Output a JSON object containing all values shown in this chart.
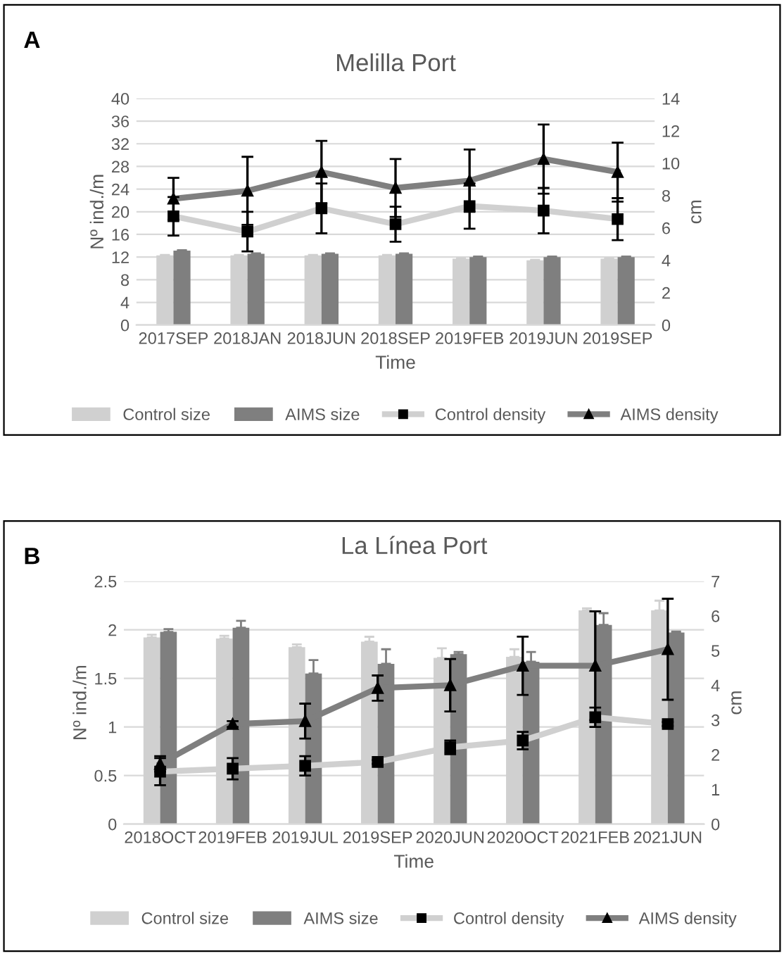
{
  "chart_data": [
    {
      "type": "bar",
      "title": "Melilla Port",
      "xlabel": "Time",
      "ylabel": "Nº ind./m",
      "y2label": "cm",
      "annotations": [
        "A"
      ],
      "categories": [
        "2017SEP",
        "2018JAN",
        "2018JUN",
        "2018SEP",
        "2019FEB",
        "2019JUN",
        "2019SEP"
      ],
      "ylim": [
        0,
        40
      ],
      "yticks": [
        0,
        4,
        8,
        12,
        16,
        20,
        24,
        28,
        32,
        36,
        40
      ],
      "y2lim": [
        0,
        14
      ],
      "y2ticks": [
        0,
        2,
        4,
        6,
        8,
        10,
        12,
        14
      ],
      "grid": "y",
      "legend": "bottom",
      "series": [
        {
          "name": "Control size",
          "axis": "y2",
          "color": "#d0d0d0",
          "values": [
            4.3,
            4.3,
            4.3,
            4.3,
            4.1,
            4.0,
            4.1
          ],
          "errors": [
            0.03,
            0.03,
            0.03,
            0.03,
            0.03,
            0.03,
            0.03
          ]
        },
        {
          "name": "AIMS size",
          "axis": "y2",
          "color": "#7f7f7f",
          "values": [
            4.6,
            4.4,
            4.4,
            4.4,
            4.2,
            4.2,
            4.2
          ],
          "errors": [
            0.03,
            0.03,
            0.03,
            0.03,
            0.03,
            0.03,
            0.03
          ]
        },
        {
          "name": "Control density",
          "type": "line",
          "axis": "y",
          "color": "#d0d0d0",
          "marker": "square",
          "values": [
            19.2,
            16.5,
            20.6,
            17.8,
            21,
            20.2,
            18.7
          ],
          "errors": [
            3.4,
            3.5,
            4.4,
            3.1,
            4,
            4,
            3.7
          ]
        },
        {
          "name": "AIMS density",
          "type": "line",
          "axis": "y",
          "color": "#7f7f7f",
          "marker": "triangle",
          "values": [
            22.3,
            23.7,
            27,
            24.2,
            25.5,
            29.3,
            27
          ],
          "errors": [
            3.7,
            6,
            5.5,
            5.1,
            5.5,
            6.1,
            5.2
          ]
        }
      ]
    },
    {
      "type": "bar",
      "title": "La Línea Port",
      "xlabel": "Time",
      "ylabel": "Nº ind./m",
      "y2label": "cm",
      "annotations": [
        "B"
      ],
      "categories": [
        "2018OCT",
        "2019FEB",
        "2019JUL",
        "2019SEP",
        "2020JUN",
        "2020OCT",
        "2021FEB",
        "2021JUN"
      ],
      "ylim": [
        0,
        2.5
      ],
      "yticks": [
        0,
        0.5,
        1,
        1.5,
        2,
        2.5
      ],
      "y2lim": [
        0,
        7
      ],
      "y2ticks": [
        0,
        1,
        2,
        3,
        4,
        5,
        6,
        7
      ],
      "grid": "y",
      "legend": "bottom",
      "series": [
        {
          "name": "Control size",
          "axis": "y2",
          "color": "#d0d0d0",
          "values": [
            5.38,
            5.35,
            5.1,
            5.26,
            4.79,
            4.82,
            6.16,
            6.16
          ],
          "errors": [
            0.08,
            0.08,
            0.08,
            0.14,
            0.28,
            0.22,
            0.06,
            0.28
          ]
        },
        {
          "name": "AIMS size",
          "axis": "y2",
          "color": "#7f7f7f",
          "values": [
            5.54,
            5.66,
            4.34,
            4.62,
            4.9,
            4.68,
            5.74,
            5.52
          ],
          "errors": [
            0.08,
            0.2,
            0.39,
            0.42,
            0.06,
            0.28,
            0.34,
            0.03
          ]
        },
        {
          "name": "Control density",
          "type": "line",
          "axis": "y",
          "color": "#d0d0d0",
          "marker": "square",
          "values": [
            0.54,
            0.57,
            0.6,
            0.64,
            0.79,
            0.86,
            1.1,
            1.03
          ],
          "errors": [
            0.14,
            0.11,
            0.1,
            0.02,
            0.07,
            0.09,
            0.1,
            0.02
          ]
        },
        {
          "name": "AIMS density",
          "type": "line",
          "axis": "y",
          "color": "#7f7f7f",
          "marker": "triangle",
          "values": [
            0.62,
            1.03,
            1.06,
            1.4,
            1.43,
            1.63,
            1.63,
            1.8
          ],
          "errors": [
            0.08,
            0.03,
            0.18,
            0.13,
            0.27,
            0.3,
            0.56,
            0.52
          ]
        }
      ]
    }
  ]
}
